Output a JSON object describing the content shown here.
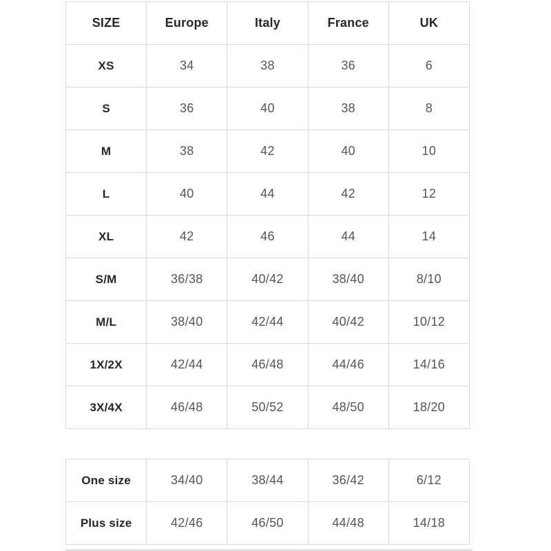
{
  "colors": {
    "background": "#ffffff",
    "table_border": "#d9d9d9",
    "header_text": "#25252e",
    "value_text": "#55555e",
    "bottom_divider": "#e4e4e4"
  },
  "chart_data": [
    {
      "type": "table",
      "columns": [
        "SIZE",
        "Europe",
        "Italy",
        "France",
        "UK"
      ],
      "rows": [
        [
          "XS",
          "34",
          "38",
          "36",
          "6"
        ],
        [
          "S",
          "36",
          "40",
          "38",
          "8"
        ],
        [
          "M",
          "38",
          "42",
          "40",
          "10"
        ],
        [
          "L",
          "40",
          "44",
          "42",
          "12"
        ],
        [
          "XL",
          "42",
          "46",
          "44",
          "14"
        ],
        [
          "S/M",
          "36/38",
          "40/42",
          "38/40",
          "8/10"
        ],
        [
          "M/L",
          "38/40",
          "42/44",
          "40/42",
          "10/12"
        ],
        [
          "1X/2X",
          "42/44",
          "46/48",
          "44/46",
          "14/16"
        ],
        [
          "3X/4X",
          "46/48",
          "50/52",
          "48/50",
          "18/20"
        ]
      ],
      "layout": {
        "grid": true,
        "header_row": true
      }
    },
    {
      "type": "table",
      "rows": [
        [
          "One size",
          "34/40",
          "38/44",
          "36/42",
          "6/12"
        ],
        [
          "Plus size",
          "42/46",
          "46/50",
          "44/48",
          "14/18"
        ]
      ],
      "layout": {
        "grid": true,
        "header_row": false
      }
    }
  ]
}
